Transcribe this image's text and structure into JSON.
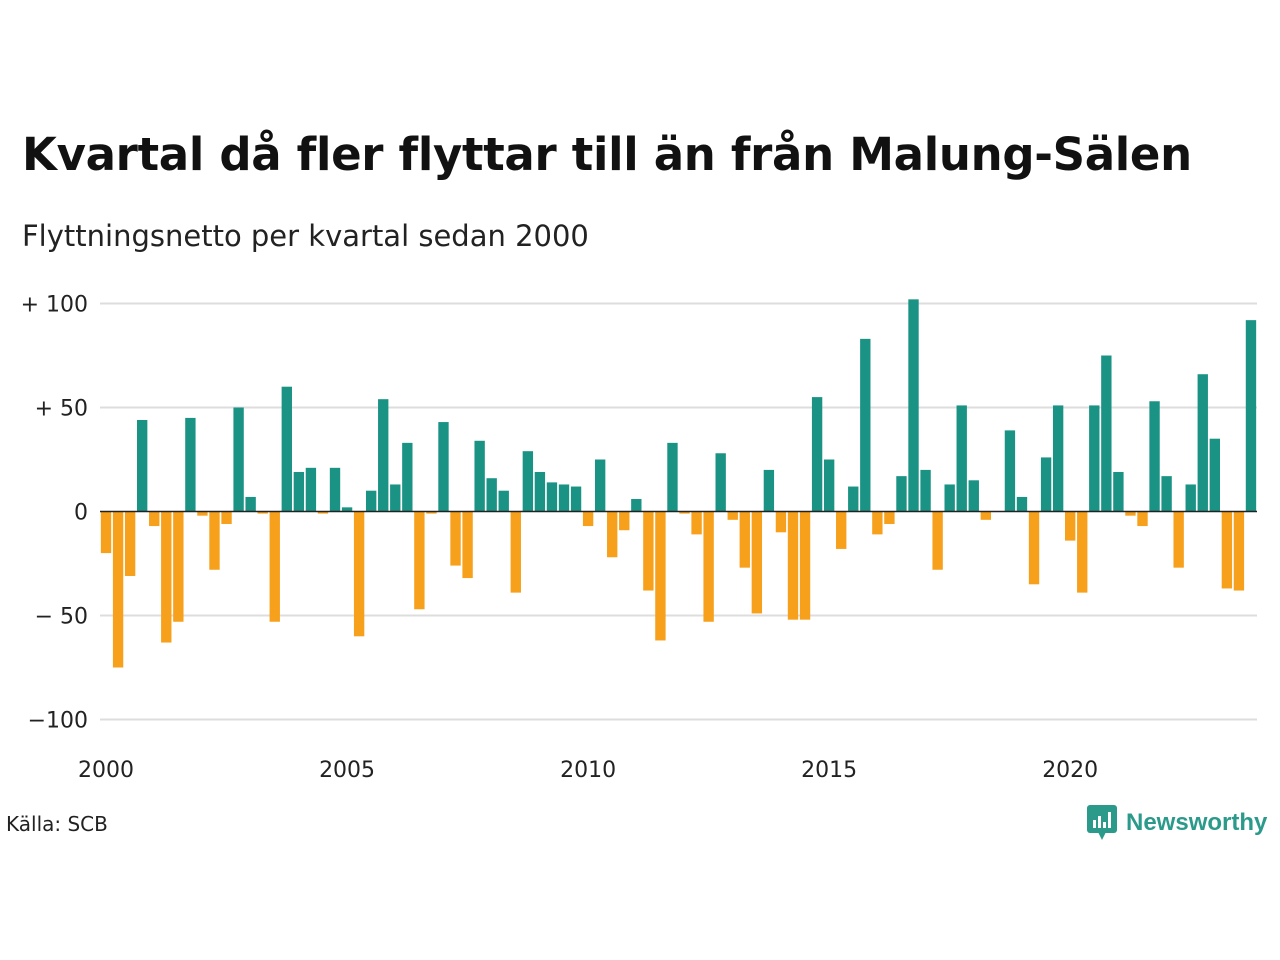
{
  "title": "Kvartal då fler flyttar till än från Malung-Sälen",
  "subtitle": "Flyttningsnetto per kvartal sedan 2000",
  "source": "Källa: SCB",
  "brand": {
    "name": "Newsworthy",
    "icon": "newsworthy-logo-icon"
  },
  "colors": {
    "positive": "#1a9385",
    "negative": "#f6a01c",
    "grid": "#dddddd",
    "zero": "#222222"
  },
  "chart_data": {
    "type": "bar",
    "title": "Kvartal då fler flyttar till än från Malung-Sälen",
    "subtitle": "Flyttningsnetto per kvartal sedan 2000",
    "xlabel": "",
    "ylabel": "",
    "ylim": [
      -100,
      100
    ],
    "y_ticks": [
      100,
      50,
      0,
      -50,
      -100
    ],
    "y_tick_labels": [
      "+ 100",
      "+  50",
      "0",
      "− 50",
      "−100"
    ],
    "x_ticks": [
      2000,
      2005,
      2010,
      2015,
      2020
    ],
    "x_tick_labels": [
      "2000",
      "2005",
      "2010",
      "2015",
      "2020"
    ],
    "grid": true,
    "legend": "none",
    "start": "2000 Q1",
    "frequency": "quarter",
    "values": [
      -20,
      -75,
      -31,
      44,
      -7,
      -63,
      -53,
      45,
      -2,
      -28,
      -6,
      50,
      7,
      -1,
      -53,
      60,
      19,
      21,
      -1,
      21,
      2,
      -60,
      10,
      54,
      13,
      33,
      -47,
      -1,
      43,
      -26,
      -32,
      34,
      16,
      10,
      -39,
      29,
      19,
      14,
      13,
      12,
      -7,
      25,
      -22,
      -9,
      6,
      -38,
      -62,
      33,
      -1,
      -11,
      -53,
      28,
      -4,
      -27,
      -49,
      20,
      -10,
      -52,
      -52,
      55,
      25,
      -18,
      12,
      83,
      -11,
      -6,
      17,
      102,
      20,
      -28,
      13,
      51,
      15,
      -4,
      0,
      39,
      7,
      -35,
      26,
      51,
      -14,
      -39,
      51,
      75,
      19,
      -2,
      -7,
      53,
      17,
      -27,
      13,
      66,
      35,
      -37,
      -38,
      92
    ]
  }
}
